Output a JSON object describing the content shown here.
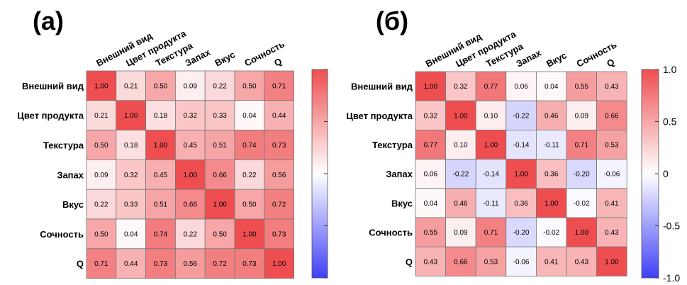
{
  "colors": {
    "positive": "#ee4e50",
    "zero": "#ffffff",
    "negative": "#3f40f5",
    "grid": "#777777"
  },
  "chart_data": [
    {
      "type": "heatmap",
      "title": "(а)",
      "variables": [
        "Внешний вид",
        "Цвет продукта",
        "Текстура",
        "Запах",
        "Вкус",
        "Сочность",
        "Q"
      ],
      "values": [
        [
          1.0,
          0.21,
          0.5,
          0.09,
          0.22,
          0.5,
          0.71
        ],
        [
          0.21,
          1.0,
          0.18,
          0.32,
          0.33,
          0.04,
          0.44
        ],
        [
          0.5,
          0.18,
          1.0,
          0.45,
          0.51,
          0.74,
          0.73
        ],
        [
          0.09,
          0.32,
          0.45,
          1.0,
          0.66,
          0.22,
          0.56
        ],
        [
          0.22,
          0.33,
          0.51,
          0.66,
          1.0,
          0.5,
          0.72
        ],
        [
          0.5,
          0.04,
          0.74,
          0.22,
          0.5,
          1.0,
          0.73
        ],
        [
          0.71,
          0.44,
          0.73,
          0.56,
          0.72,
          0.73,
          1.0
        ]
      ],
      "colorbar": {
        "range": [
          -1.0,
          1.0
        ],
        "tick_labels": []
      }
    },
    {
      "type": "heatmap",
      "title": "(б)",
      "variables": [
        "Внешний вид",
        "Цвет продукта",
        "Текстура",
        "Запах",
        "Вкус",
        "Сочность",
        "Q"
      ],
      "values": [
        [
          1.0,
          0.32,
          0.77,
          0.06,
          0.04,
          0.55,
          0.43
        ],
        [
          0.32,
          1.0,
          0.1,
          -0.22,
          0.46,
          0.09,
          0.66
        ],
        [
          0.77,
          0.1,
          1.0,
          -0.14,
          -0.11,
          0.71,
          0.53
        ],
        [
          0.06,
          -0.22,
          -0.14,
          1.0,
          0.36,
          -0.2,
          -0.06
        ],
        [
          0.04,
          0.46,
          -0.11,
          0.36,
          1.0,
          -0.02,
          0.41
        ],
        [
          0.55,
          0.09,
          0.71,
          -0.2,
          -0.02,
          1.0,
          0.43
        ],
        [
          0.43,
          0.66,
          0.53,
          -0.06,
          0.41,
          0.43,
          1.0
        ]
      ],
      "colorbar": {
        "range": [
          -1.0,
          1.0
        ],
        "tick_labels": [
          "1.0",
          "0.5",
          "0",
          "-0.5",
          "-1.0"
        ]
      }
    }
  ]
}
